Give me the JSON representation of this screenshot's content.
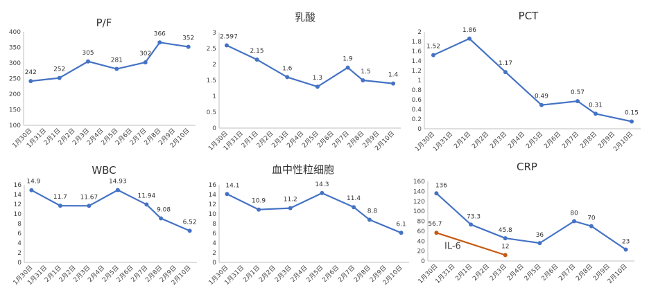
{
  "colors": {
    "primary_series": "#4472C4",
    "secondary_series": "#C55A11",
    "axis": "#BFBFBF",
    "text": "#333333"
  },
  "chart_data": [
    {
      "type": "line",
      "title": "P/F",
      "categories": [
        "1月30日",
        "1月31日",
        "2月1日",
        "2月2日",
        "2月3日",
        "2月4日",
        "2月5日",
        "2月6日",
        "2月7日",
        "2月8日",
        "2月9日",
        "2月10日"
      ],
      "ylim": [
        100,
        400
      ],
      "yticks": [
        "100",
        "150",
        "200",
        "250",
        "300",
        "350",
        "400"
      ],
      "grid": false,
      "series": [
        {
          "points": [
            {
              "cat": "1月30日",
              "value": 242,
              "label": "242"
            },
            {
              "cat": "2月1日",
              "value": 252,
              "label": "252"
            },
            {
              "cat": "2月3日",
              "value": 305,
              "label": "305"
            },
            {
              "cat": "2月5日",
              "value": 281,
              "label": "281"
            },
            {
              "cat": "2月7日",
              "value": 302,
              "label": "302"
            },
            {
              "cat": "2月8日",
              "value": 366,
              "label": "366"
            },
            {
              "cat": "2月10日",
              "value": 352,
              "label": "352"
            }
          ]
        }
      ]
    },
    {
      "type": "line",
      "title": "乳酸",
      "categories": [
        "1月30日",
        "1月31日",
        "2月1日",
        "2月2日",
        "2月3日",
        "2月4日",
        "2月5日",
        "2月6日",
        "2月7日",
        "2月8日",
        "2月9日",
        "2月10日"
      ],
      "ylim": [
        0,
        3
      ],
      "yticks": [
        "0",
        "0.5",
        "1",
        "1.5",
        "2",
        "2.5",
        "3"
      ],
      "grid": false,
      "series": [
        {
          "points": [
            {
              "cat": "1月30日",
              "value": 2.597,
              "label": "2.597"
            },
            {
              "cat": "2月1日",
              "value": 2.15,
              "label": "2.15"
            },
            {
              "cat": "2月3日",
              "value": 1.6,
              "label": "1.6"
            },
            {
              "cat": "2月5日",
              "value": 1.3,
              "label": "1.3"
            },
            {
              "cat": "2月7日",
              "value": 1.9,
              "label": "1.9"
            },
            {
              "cat": "2月8日",
              "value": 1.5,
              "label": "1.5"
            },
            {
              "cat": "2月10日",
              "value": 1.4,
              "label": "1.4"
            }
          ]
        }
      ]
    },
    {
      "type": "line",
      "title": "PCT",
      "categories": [
        "1月30日",
        "1月31日",
        "2月1日",
        "2月2日",
        "2月3日",
        "2月4日",
        "2月5日",
        "2月6日",
        "2月7日",
        "2月8日",
        "2月9日",
        "2月10日"
      ],
      "ylim": [
        0,
        2
      ],
      "yticks": [
        "0",
        "0.2",
        "0.4",
        "0.6",
        "0.8",
        "1",
        "1.2",
        "1.4",
        "1.6",
        "1.8",
        "2"
      ],
      "grid": false,
      "series": [
        {
          "points": [
            {
              "cat": "1月30日",
              "value": 1.52,
              "label": "1.52"
            },
            {
              "cat": "2月1日",
              "value": 1.86,
              "label": "1.86"
            },
            {
              "cat": "2月3日",
              "value": 1.17,
              "label": "1.17"
            },
            {
              "cat": "2月5日",
              "value": 0.49,
              "label": "0.49"
            },
            {
              "cat": "2月7日",
              "value": 0.57,
              "label": "0.57"
            },
            {
              "cat": "2月8日",
              "value": 0.31,
              "label": "0.31"
            },
            {
              "cat": "2月10日",
              "value": 0.15,
              "label": "0.15"
            }
          ]
        }
      ]
    },
    {
      "type": "line",
      "title": "WBC",
      "categories": [
        "1月30日",
        "1月31日",
        "2月1日",
        "2月2日",
        "2月3日",
        "2月4日",
        "2月5日",
        "2月6日",
        "2月7日",
        "2月8日",
        "2月9日",
        "2月10日"
      ],
      "ylim": [
        0,
        16
      ],
      "yticks": [
        "0",
        "2",
        "4",
        "6",
        "8",
        "10",
        "12",
        "14",
        "16"
      ],
      "grid": false,
      "series": [
        {
          "points": [
            {
              "cat": "1月30日",
              "value": 14.9,
              "label": "14.9"
            },
            {
              "cat": "2月1日",
              "value": 11.7,
              "label": "11.7"
            },
            {
              "cat": "2月3日",
              "value": 11.67,
              "label": "11.67"
            },
            {
              "cat": "2月5日",
              "value": 14.93,
              "label": "14.93"
            },
            {
              "cat": "2月7日",
              "value": 11.94,
              "label": "11.94"
            },
            {
              "cat": "2月8日",
              "value": 9.08,
              "label": "9.08"
            },
            {
              "cat": "2月10日",
              "value": 6.52,
              "label": "6.52"
            }
          ]
        }
      ]
    },
    {
      "type": "line",
      "title": "血中性粒细胞",
      "categories": [
        "1月30日",
        "1月31日",
        "2月1日",
        "2月2日",
        "2月3日",
        "2月4日",
        "2月5日",
        "2月6日",
        "2月7日",
        "2月8日",
        "2月9日",
        "2月10日"
      ],
      "ylim": [
        0,
        16
      ],
      "yticks": [
        "0",
        "2",
        "4",
        "6",
        "8",
        "10",
        "12",
        "14",
        "16"
      ],
      "grid": false,
      "series": [
        {
          "points": [
            {
              "cat": "1月30日",
              "value": 14.1,
              "label": "14.1"
            },
            {
              "cat": "2月1日",
              "value": 10.9,
              "label": "10.9"
            },
            {
              "cat": "2月3日",
              "value": 11.2,
              "label": "11.2"
            },
            {
              "cat": "2月5日",
              "value": 14.3,
              "label": "14.3"
            },
            {
              "cat": "2月7日",
              "value": 11.4,
              "label": "11.4"
            },
            {
              "cat": "2月8日",
              "value": 8.8,
              "label": "8.8"
            },
            {
              "cat": "2月10日",
              "value": 6.1,
              "label": "6.1"
            }
          ]
        }
      ]
    },
    {
      "type": "line",
      "title": "CRP",
      "categories": [
        "1月30日",
        "1月31日",
        "2月1日",
        "2月2日",
        "2月3日",
        "2月4日",
        "2月5日",
        "2月6日",
        "2月7日",
        "2月8日",
        "2月9日",
        "2月10日"
      ],
      "ylim": [
        0,
        160
      ],
      "yticks": [
        "0",
        "20",
        "40",
        "60",
        "80",
        "100",
        "120",
        "140",
        "160"
      ],
      "grid": false,
      "annotation": "IL-6",
      "series": [
        {
          "points": [
            {
              "cat": "1月30日",
              "value": 136,
              "label": "136"
            },
            {
              "cat": "2月1日",
              "value": 73.3,
              "label": "73.3"
            },
            {
              "cat": "2月3日",
              "value": 45.8,
              "label": "45.8"
            },
            {
              "cat": "2月5日",
              "value": 36,
              "label": "36"
            },
            {
              "cat": "2月7日",
              "value": 80,
              "label": "80"
            },
            {
              "cat": "2月8日",
              "value": 70,
              "label": "70"
            },
            {
              "cat": "2月10日",
              "value": 23,
              "label": "23"
            }
          ]
        },
        {
          "color": "#C55A11",
          "points": [
            {
              "cat": "1月30日",
              "value": 56.7,
              "label": "56.7"
            },
            {
              "cat": "2月3日",
              "value": 12,
              "label": "12"
            }
          ]
        }
      ]
    }
  ]
}
